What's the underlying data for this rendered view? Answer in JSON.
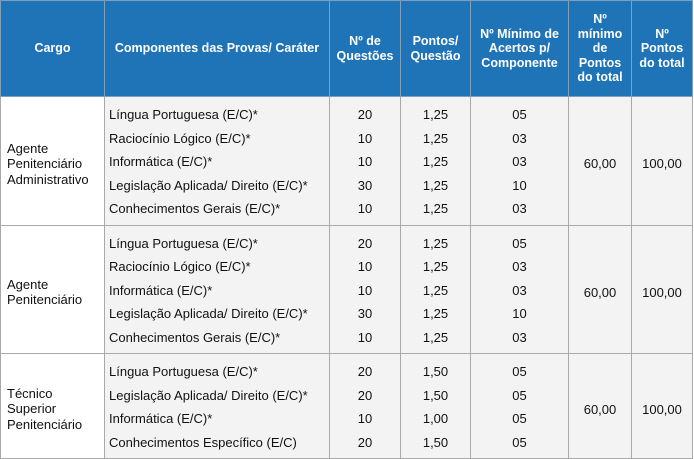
{
  "headers": {
    "cargo": "Cargo",
    "componentes": "Componentes das Provas/ Caráter",
    "questoes": "Nº de Questões",
    "pontos_questao": "Pontos/ Questão",
    "minimo_acertos": "Nº Mínimo de Acertos p/ Componente",
    "minimo_pontos": "Nº mínimo de Pontos do total",
    "pontos_total": "Nº Pontos do total"
  },
  "groups": [
    {
      "cargo": "Agente Penitenciário Administrativo",
      "min_pontos": "60,00",
      "pontos_total": "100,00",
      "rows": [
        {
          "comp": "Língua Portuguesa (E/C)*",
          "q": "20",
          "p": "1,25",
          "m": "05"
        },
        {
          "comp": "Raciocínio Lógico (E/C)*",
          "q": "10",
          "p": "1,25",
          "m": "03"
        },
        {
          "comp": "Informática (E/C)*",
          "q": "10",
          "p": "1,25",
          "m": "03"
        },
        {
          "comp": "Legislação Aplicada/ Direito (E/C)*",
          "q": "30",
          "p": "1,25",
          "m": "10"
        },
        {
          "comp": "Conhecimentos Gerais (E/C)*",
          "q": "10",
          "p": "1,25",
          "m": "03"
        }
      ]
    },
    {
      "cargo": "Agente Penitenciário",
      "min_pontos": "60,00",
      "pontos_total": "100,00",
      "rows": [
        {
          "comp": "Língua Portuguesa (E/C)*",
          "q": "20",
          "p": "1,25",
          "m": "05"
        },
        {
          "comp": "Raciocínio Lógico (E/C)*",
          "q": "10",
          "p": "1,25",
          "m": "03"
        },
        {
          "comp": "Informática (E/C)*",
          "q": "10",
          "p": "1,25",
          "m": "03"
        },
        {
          "comp": "Legislação Aplicada/ Direito (E/C)*",
          "q": "30",
          "p": "1,25",
          "m": "10"
        },
        {
          "comp": "Conhecimentos Gerais (E/C)*",
          "q": "10",
          "p": "1,25",
          "m": "03"
        }
      ]
    },
    {
      "cargo": "Técnico Superior Penitenciário",
      "min_pontos": "60,00",
      "pontos_total": "100,00",
      "rows": [
        {
          "comp": "Língua Portuguesa (E/C)*",
          "q": "20",
          "p": "1,50",
          "m": "05"
        },
        {
          "comp": "Legislação Aplicada/ Direito (E/C)*",
          "q": "20",
          "p": "1,50",
          "m": "05"
        },
        {
          "comp": "Informática (E/C)*",
          "q": "10",
          "p": "1,00",
          "m": "05"
        },
        {
          "comp": "Conhecimentos Específico (E/C)",
          "q": "20",
          "p": "1,50",
          "m": "05"
        }
      ]
    }
  ],
  "colors": {
    "header_bg": "#1f74b8",
    "header_text": "#ffffff",
    "cell_bg": "#f3f3f3"
  }
}
